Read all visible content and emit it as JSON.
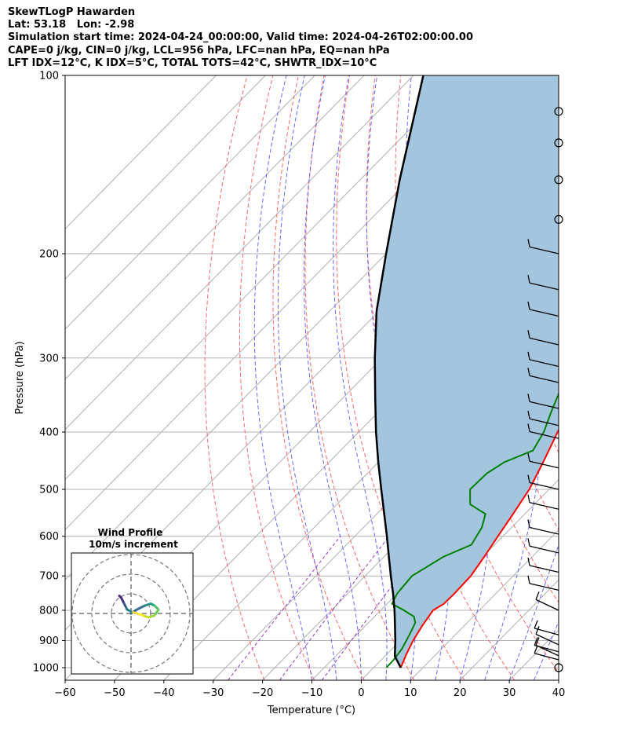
{
  "header": {
    "lines": [
      "SkewTLogP Hawarden",
      "Lat: 53.18   Lon: -2.98",
      "Simulation start time: 2024-04-24_00:00:00, Valid time: 2024-04-26T02:00:00.00",
      "CAPE=0 j/kg, CIN=0 j/kg, LCL=956 hPa, LFC=nan hPa, EQ=nan hPa",
      "LFT IDX=12$^\\circ$C, K IDX=5$^\\circ$C, TOTAL TOTS=42$^\\circ$C, SHWTR_IDX=10$^\\circ$C"
    ],
    "display_lines": [
      "SkewTLogP Hawarden",
      "Lat: 53.18   Lon: -2.98",
      "Simulation start time: 2024-04-24_00:00:00, Valid time: 2024-04-26T02:00:00.00",
      "CAPE=0 j/kg, CIN=0 j/kg, LCL=956 hPa, LFC=nan hPa, EQ=nan hPa",
      "LFT IDX=12°C, K IDX=5°C, TOTAL TOTS=42°C, SHWTR_IDX=10°C"
    ]
  },
  "chart_data": [
    {
      "type": "line",
      "subtype": "skew-t log-p",
      "xlabel": "Temperature ($^\\circ$C)",
      "xlabel_display": "Temperature (°C)",
      "ylabel": "Pressure (hPa)",
      "xlim": [
        -60,
        40
      ],
      "ylim": [
        1050,
        100
      ],
      "y_scale": "log",
      "x_ticks": [
        -60,
        -50,
        -40,
        -30,
        -20,
        -10,
        0,
        10,
        20,
        30,
        40
      ],
      "y_ticks": [
        100,
        200,
        300,
        400,
        500,
        600,
        700,
        800,
        900,
        1000
      ],
      "grid": true,
      "colors": {
        "temperature": "#ff0000",
        "dewpoint": "#008000",
        "parcel": "#000000",
        "cape_fill": "#a3c5de",
        "dry_adiabats": "#ff6666",
        "moist_adiabats": "#6666ff",
        "mixing_ratio": "#9933cc",
        "isotherms": "#b0b0b0"
      },
      "series": [
        {
          "key": "temperature",
          "points": [
            [
              1000,
              5.5
            ],
            [
              950,
              4.0
            ],
            [
              900,
              2.6
            ],
            [
              850,
              1.5
            ],
            [
              800,
              0.6
            ],
            [
              780,
              1.5
            ],
            [
              750,
              1.6
            ],
            [
              700,
              1.4
            ],
            [
              650,
              0.3
            ],
            [
              600,
              -1.0
            ],
            [
              550,
              -2.4
            ],
            [
              500,
              -4.0
            ],
            [
              450,
              -6.6
            ],
            [
              400,
              -9.7
            ],
            [
              350,
              -13.0
            ],
            [
              320,
              -14.4
            ],
            [
              300,
              -14.5
            ],
            [
              280,
              -14.0
            ],
            [
              260,
              -13.0
            ],
            [
              240,
              -11.5
            ],
            [
              230,
              -10.5
            ],
            [
              220,
              -8.5
            ],
            [
              210,
              -6.7
            ],
            [
              200,
              -5.2
            ],
            [
              180,
              -2.0
            ],
            [
              165,
              1.0
            ],
            [
              155,
              3.0
            ],
            [
              145,
              5.0
            ],
            [
              135,
              7.0
            ],
            [
              128,
              8.0
            ],
            [
              120,
              8.5
            ],
            [
              112,
              8.8
            ],
            [
              105,
              8.8
            ],
            [
              100,
              8.7
            ]
          ]
        },
        {
          "key": "dewpoint",
          "points": [
            [
              1000,
              2.6
            ],
            [
              970,
              2.5
            ],
            [
              930,
              2.0
            ],
            [
              880,
              0.7
            ],
            [
              840,
              -0.5
            ],
            [
              820,
              -2.0
            ],
            [
              800,
              -5.3
            ],
            [
              780,
              -9.0
            ],
            [
              750,
              -10.0
            ],
            [
              700,
              -10.5
            ],
            [
              680,
              -9.5
            ],
            [
              650,
              -8.0
            ],
            [
              620,
              -4.7
            ],
            [
              580,
              -6.0
            ],
            [
              550,
              -8.0
            ],
            [
              530,
              -13.0
            ],
            [
              500,
              -16.0
            ],
            [
              470,
              -15.8
            ],
            [
              450,
              -14.5
            ],
            [
              430,
              -11.0
            ],
            [
              400,
              -12.5
            ],
            [
              370,
              -15.0
            ],
            [
              340,
              -17.5
            ],
            [
              320,
              -18.5
            ],
            [
              300,
              -19.5
            ],
            [
              280,
              -19.8
            ],
            [
              260,
              -19.5
            ],
            [
              250,
              -20.5
            ],
            [
              230,
              -21.0
            ],
            [
              210,
              -21.7
            ],
            [
              200,
              -23.5
            ],
            [
              190,
              -26.0
            ],
            [
              180,
              -27.5
            ],
            [
              170,
              -26.0
            ],
            [
              160,
              -22.5
            ],
            [
              150,
              -18.0
            ],
            [
              130,
              -10.0
            ],
            [
              115,
              -3.5
            ],
            [
              100,
              2.0
            ]
          ]
        },
        {
          "key": "parcel",
          "points": [
            [
              1000,
              5.5
            ],
            [
              956,
              2.0
            ],
            [
              900,
              -1.0
            ],
            [
              850,
              -4.0
            ],
            [
              800,
              -7.2
            ],
            [
              750,
              -10.8
            ],
            [
              700,
              -14.8
            ],
            [
              650,
              -19.0
            ],
            [
              600,
              -23.5
            ],
            [
              550,
              -28.5
            ],
            [
              500,
              -34.0
            ],
            [
              450,
              -40.0
            ],
            [
              400,
              -46.5
            ],
            [
              350,
              -53.5
            ],
            [
              300,
              -61.5
            ],
            [
              250,
              -70.5
            ],
            [
              200,
              -80.0
            ],
            [
              150,
              -92.0
            ],
            [
              100,
              -108.0
            ]
          ]
        }
      ],
      "wind_barbs": {
        "x_temperature": 40,
        "calm_levels": [
          1000,
          175,
          150,
          130,
          115
        ],
        "barb_levels": [
          970,
          955,
          940,
          915,
          880,
          800,
          740,
          690,
          640,
          595,
          540,
          500,
          460,
          410,
          390,
          365,
          330,
          310,
          285,
          255,
          230,
          200
        ]
      },
      "inset": {
        "title": "Wind Profile",
        "subtitle": "10m/s increment",
        "rings": 3,
        "center_offset": [
          5,
          -1
        ],
        "ring_step": 10,
        "trace": [
          [
            0,
            0
          ],
          [
            3,
            2
          ],
          [
            7,
            4
          ],
          [
            10,
            5
          ],
          [
            12,
            4
          ],
          [
            14,
            2
          ],
          [
            12,
            -1
          ],
          [
            9,
            -2
          ],
          [
            6,
            -1
          ],
          [
            3,
            0
          ],
          [
            0,
            1
          ],
          [
            -2,
            2
          ],
          [
            -3,
            4
          ],
          [
            -4,
            6
          ],
          [
            -5,
            8
          ],
          [
            -6,
            9
          ]
        ]
      }
    }
  ]
}
